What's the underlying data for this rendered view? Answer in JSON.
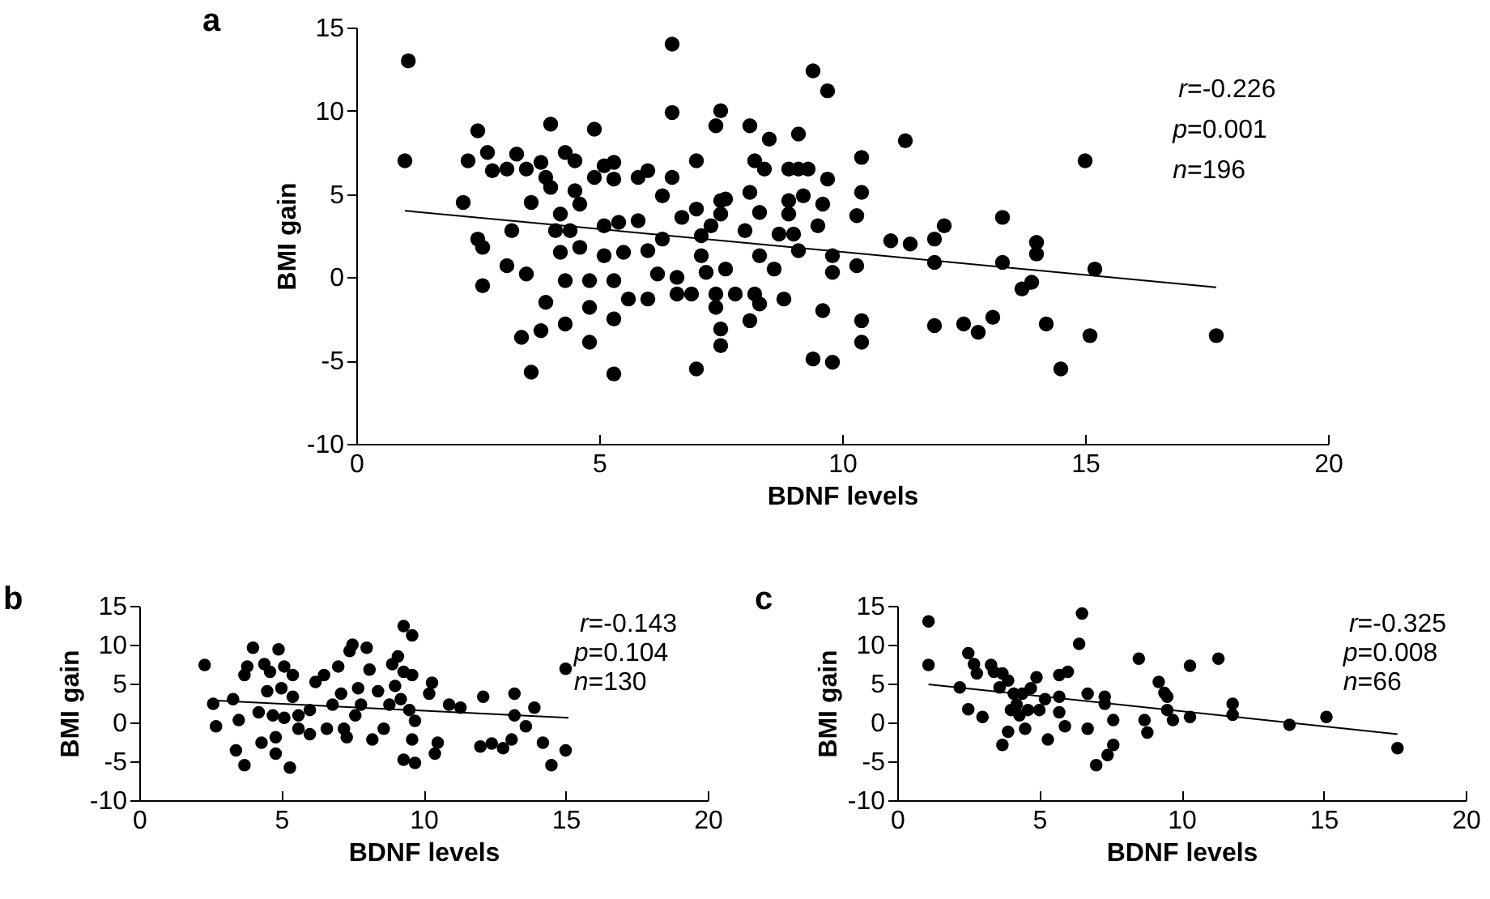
{
  "chart_data": [
    {
      "type": "scatter",
      "title": "a",
      "xlabel": "BDNF levels",
      "ylabel": "BMI gain",
      "xlim": [
        0,
        20
      ],
      "ylim": [
        -10,
        15
      ],
      "xticks": [
        0,
        5,
        10,
        15,
        20
      ],
      "yticks": [
        -10,
        -5,
        0,
        5,
        10,
        15
      ],
      "annotations": [
        "r=-0.226",
        "p=0.001",
        "n=196"
      ],
      "series": [
        {
          "marker": "circle",
          "color": "#000000",
          "x": [
            1.07,
            1.0,
            2.2,
            2.3,
            2.5,
            2.7,
            2.8,
            2.5,
            2.6,
            2.6,
            3.1,
            3.5,
            3.2,
            3.1,
            3.3,
            3.5,
            3.6,
            3.8,
            3.9,
            4.0,
            4.0,
            3.9,
            3.4,
            3.8,
            3.6,
            4.3,
            4.3,
            4.5,
            4.5,
            4.6,
            4.2,
            4.1,
            4.4,
            4.2,
            4.3,
            4.6,
            4.8,
            4.8,
            4.8,
            4.9,
            5.1,
            4.9,
            5.3,
            5.3,
            5.1,
            5.4,
            5.1,
            5.3,
            5.3,
            5.3,
            5.6,
            5.5,
            5.8,
            5.8,
            6.0,
            6.3,
            6.0,
            6.0,
            6.2,
            6.3,
            6.5,
            6.5,
            6.5,
            6.6,
            6.6,
            6.9,
            6.7,
            7.0,
            7.0,
            7.1,
            7.1,
            7.2,
            7.3,
            7.5,
            7.5,
            7.6,
            7.4,
            7.4,
            7.5,
            7.5,
            7.0,
            7.5,
            7.4,
            7.6,
            7.8,
            8.0,
            8.1,
            8.3,
            8.2,
            8.1,
            8.5,
            8.4,
            8.3,
            8.6,
            8.2,
            8.3,
            8.1,
            8.8,
            8.7,
            8.9,
            8.9,
            8.9,
            9.1,
            9.1,
            9.2,
            9.3,
            9.1,
            9.0,
            9.5,
            9.6,
            9.7,
            9.6,
            9.4,
            9.7,
            9.4,
            9.8,
            9.8,
            9.8,
            10.3,
            10.3,
            10.4,
            10.4,
            10.4,
            10.4,
            11.3,
            11.0,
            11.4,
            11.9,
            12.1,
            11.9,
            13.3,
            13.3,
            14.0,
            14.0,
            13.7,
            13.9,
            15.0,
            15.2,
            11.9,
            12.5,
            12.8,
            13.1,
            14.2,
            15.1,
            14.5,
            17.7
          ],
          "values": [
            13.0,
            7.0,
            4.5,
            7.0,
            8.8,
            7.5,
            6.4,
            2.3,
            1.8,
            -0.5,
            0.7,
            0.2,
            2.8,
            6.5,
            7.4,
            6.5,
            4.5,
            6.9,
            6.0,
            5.4,
            9.2,
            -1.5,
            -3.6,
            -3.2,
            -5.7,
            -2.8,
            7.5,
            7.0,
            5.2,
            4.4,
            3.8,
            2.8,
            2.8,
            1.5,
            -0.2,
            1.8,
            -0.2,
            -1.8,
            -3.9,
            8.9,
            6.7,
            6.0,
            6.9,
            5.9,
            3.1,
            3.3,
            1.3,
            -0.2,
            -2.5,
            -5.8,
            -1.3,
            1.5,
            3.4,
            6.0,
            6.4,
            4.9,
            1.6,
            -1.3,
            0.2,
            2.3,
            14.0,
            9.9,
            6.0,
            0.0,
            -1.0,
            -1.0,
            3.6,
            4.1,
            7.0,
            2.5,
            1.3,
            0.3,
            3.1,
            3.8,
            4.6,
            4.7,
            -1.0,
            -1.8,
            -3.1,
            -4.1,
            -5.5,
            10.0,
            9.1,
            0.5,
            -1.0,
            2.8,
            5.1,
            3.9,
            7.0,
            9.1,
            8.3,
            6.5,
            1.3,
            0.5,
            -1.0,
            -1.6,
            -2.6,
            -1.3,
            2.6,
            6.5,
            4.6,
            3.8,
            8.6,
            6.5,
            4.9,
            6.5,
            1.6,
            2.6,
            3.1,
            4.4,
            5.9,
            -2.0,
            12.4,
            11.2,
            -4.9,
            -5.1,
            1.3,
            0.3,
            3.7,
            0.7,
            7.2,
            5.1,
            -2.6,
            -3.9,
            8.2,
            2.2,
            2.0,
            2.3,
            3.1,
            0.9,
            3.6,
            0.9,
            2.1,
            1.4,
            -0.7,
            -0.3,
            7.0,
            0.5,
            -2.9,
            -2.8,
            -3.3,
            -2.4,
            -2.8,
            -3.5,
            -5.5,
            -3.5
          ]
        },
        {
          "type": "line",
          "color": "#000000",
          "x": [
            1.0,
            17.7
          ],
          "values": [
            4.0,
            -0.6
          ]
        }
      ]
    },
    {
      "type": "scatter",
      "title": "b",
      "xlabel": "BDNF levels",
      "ylabel": "BMI gain",
      "xlim": [
        0,
        20
      ],
      "ylim": [
        -10,
        15
      ],
      "xticks": [
        0,
        5,
        10,
        15,
        20
      ],
      "yticks": [
        -10,
        -5,
        0,
        5,
        10,
        15
      ],
      "annotations": [
        "r=-0.143",
        "p=0.104",
        "n=130"
      ],
      "series": [
        {
          "marker": "circle",
          "color": "#000000",
          "x": [
            2.3,
            2.6,
            2.7,
            3.3,
            3.4,
            3.5,
            3.7,
            3.7,
            3.8,
            4.0,
            4.2,
            4.3,
            4.4,
            4.5,
            4.6,
            4.7,
            4.8,
            4.8,
            4.9,
            5.0,
            5.1,
            5.4,
            5.4,
            5.3,
            5.1,
            5.6,
            5.6,
            6.0,
            6.0,
            6.2,
            6.5,
            6.6,
            6.8,
            7.0,
            7.1,
            7.2,
            7.3,
            7.4,
            7.6,
            7.7,
            7.8,
            8.0,
            8.1,
            8.2,
            8.4,
            8.6,
            8.8,
            8.9,
            9.0,
            9.1,
            9.2,
            9.3,
            9.6,
            9.5,
            9.6,
            9.3,
            9.7,
            9.7,
            10.3,
            10.2,
            10.5,
            10.4,
            10.9,
            11.3,
            12.1,
            12.0,
            12.4,
            12.8,
            13.1,
            13.2,
            13.2,
            13.6,
            13.9,
            14.2,
            14.5,
            15.0,
            15.0,
            9.3,
            9.6,
            7.5
          ],
          "values": [
            7.4,
            2.4,
            -0.5,
            3.0,
            -3.6,
            0.3,
            -5.5,
            6.1,
            7.2,
            9.6,
            1.3,
            -2.6,
            7.5,
            4.0,
            6.5,
            0.9,
            -1.9,
            -4.0,
            9.4,
            4.4,
            7.2,
            6.1,
            3.3,
            -5.8,
            0.6,
            0.9,
            -0.8,
            1.6,
            -1.5,
            5.2,
            6.1,
            -0.8,
            2.3,
            7.2,
            3.7,
            -0.8,
            -1.9,
            9.2,
            0.9,
            4.4,
            2.3,
            9.6,
            6.8,
            -2.2,
            4.0,
            -0.8,
            2.3,
            7.5,
            4.7,
            8.5,
            3.0,
            6.5,
            6.1,
            1.6,
            -2.2,
            -4.8,
            -5.2,
            0.2,
            5.1,
            3.7,
            -2.6,
            -4.0,
            2.3,
            1.9,
            3.3,
            -3.1,
            -2.7,
            -3.3,
            -2.2,
            3.7,
            0.9,
            -0.5,
            1.9,
            -2.6,
            -5.5,
            6.9,
            -3.6,
            12.4,
            11.2,
            10.0
          ]
        },
        {
          "type": "line",
          "color": "#000000",
          "x": [
            2.7,
            15.1
          ],
          "values": [
            2.8,
            0.6
          ]
        }
      ]
    },
    {
      "type": "scatter",
      "title": "c",
      "xlabel": "BDNF levels",
      "ylabel": "BMI gain",
      "xlim": [
        0,
        20
      ],
      "ylim": [
        -10,
        15
      ],
      "xticks": [
        0,
        5,
        10,
        15,
        20
      ],
      "yticks": [
        -10,
        -5,
        0,
        5,
        10,
        15
      ],
      "annotations": [
        "r=-0.325",
        "p=0.008",
        "n=66"
      ],
      "series": [
        {
          "marker": "circle",
          "color": "#000000",
          "x": [
            1.1,
            1.1,
            2.2,
            2.5,
            2.7,
            2.8,
            2.5,
            3.0,
            3.3,
            3.4,
            3.6,
            3.7,
            3.9,
            3.7,
            3.9,
            4.0,
            4.1,
            4.2,
            4.4,
            4.3,
            4.5,
            4.6,
            4.7,
            4.9,
            5.0,
            5.2,
            5.3,
            5.7,
            6.0,
            5.7,
            5.7,
            5.9,
            6.4,
            6.5,
            6.7,
            6.7,
            7.3,
            7.3,
            7.0,
            7.4,
            7.6,
            7.6,
            8.5,
            8.7,
            8.8,
            9.2,
            9.4,
            9.5,
            9.5,
            9.7,
            10.3,
            10.3,
            11.3,
            11.8,
            11.8,
            13.8,
            15.1,
            17.6
          ],
          "values": [
            13.0,
            7.4,
            4.5,
            8.9,
            7.5,
            6.3,
            1.7,
            0.7,
            7.4,
            6.5,
            4.5,
            6.3,
            5.4,
            -2.9,
            -1.2,
            1.6,
            3.7,
            2.3,
            3.7,
            0.9,
            -0.8,
            1.6,
            4.4,
            5.8,
            1.6,
            3.0,
            -2.2,
            6.1,
            6.5,
            3.3,
            1.3,
            -0.5,
            10.1,
            14.0,
            3.7,
            -0.8,
            3.3,
            2.4,
            -5.5,
            -4.2,
            -2.9,
            0.3,
            8.2,
            0.3,
            -1.3,
            5.2,
            3.8,
            3.3,
            1.6,
            0.3,
            0.7,
            7.3,
            8.2,
            2.4,
            1.0,
            -0.3,
            0.7,
            -3.3
          ]
        },
        {
          "type": "line",
          "color": "#000000",
          "x": [
            1.1,
            17.6
          ],
          "values": [
            4.9,
            -1.5
          ]
        }
      ]
    }
  ]
}
